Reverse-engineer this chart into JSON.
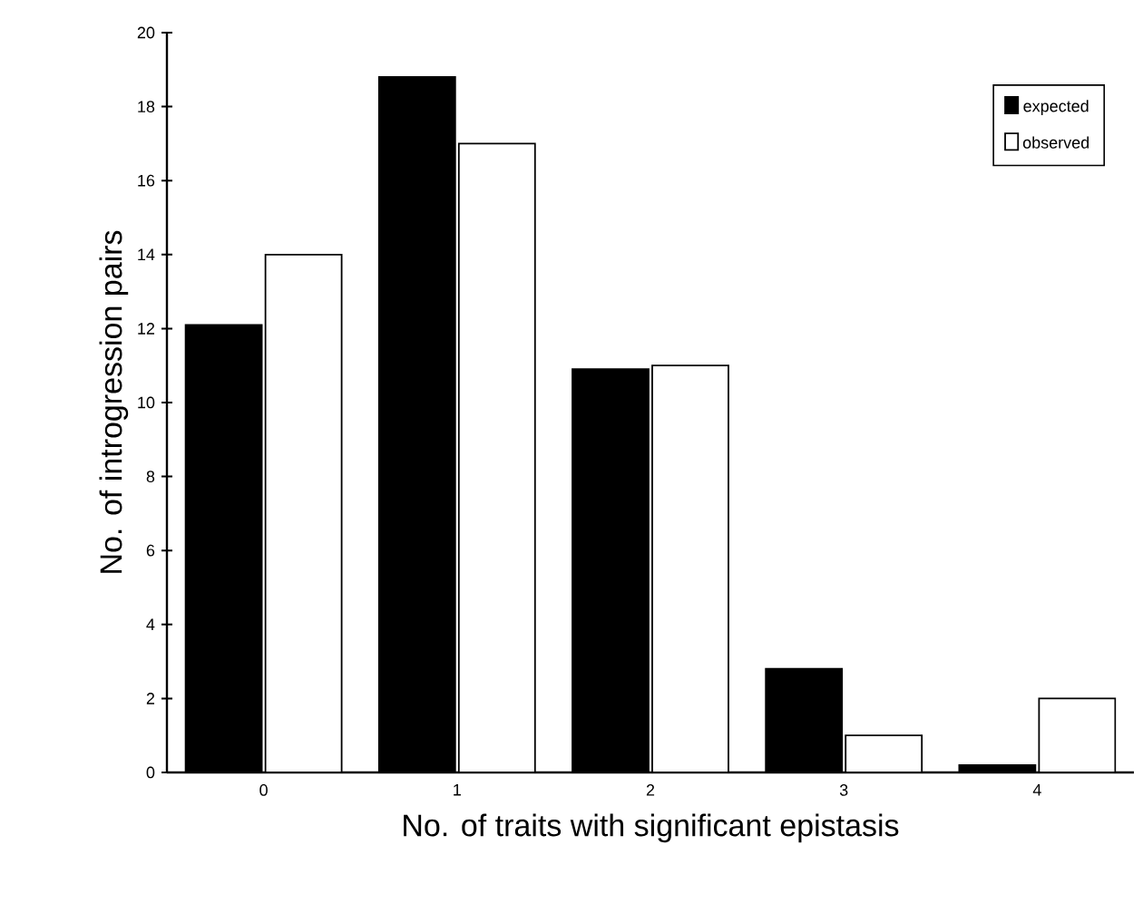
{
  "chart_data": {
    "type": "bar",
    "xlabel": "No. of traits with significant epistasis",
    "ylabel": "No. of introgression pairs",
    "categories": [
      "0",
      "1",
      "2",
      "3",
      "4"
    ],
    "series": [
      {
        "name": "expected",
        "color": "#000000",
        "values": [
          12.1,
          18.8,
          10.9,
          2.8,
          0.2
        ]
      },
      {
        "name": "observed",
        "color": "#ffffff",
        "values": [
          14,
          17,
          11,
          1,
          2
        ]
      }
    ],
    "ylim": [
      0,
      20
    ],
    "yticks": [
      0,
      2,
      4,
      6,
      8,
      10,
      12,
      14,
      16,
      18,
      20
    ],
    "legend": "top right"
  }
}
